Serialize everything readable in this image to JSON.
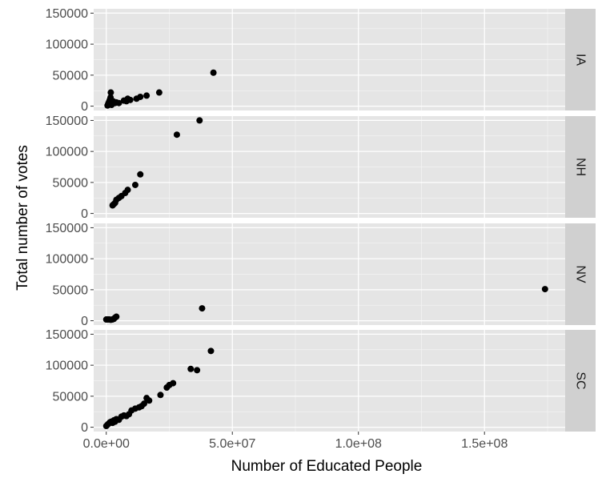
{
  "chart_data": {
    "type": "scatter",
    "xlabel": "Number of Educated People",
    "ylabel": "Total number of votes",
    "xlim": [
      -5000000,
      182000000
    ],
    "ylim": [
      -7000,
      157000
    ],
    "x_ticks": [
      0,
      50000000,
      100000000,
      150000000
    ],
    "x_tick_labels": [
      "0.0e+00",
      "5.0e+07",
      "1.0e+08",
      "1.5e+08"
    ],
    "y_ticks": [
      0,
      50000,
      100000,
      150000
    ],
    "y_tick_labels": [
      "0",
      "50000",
      "100000",
      "150000"
    ],
    "grid": true,
    "facets": [
      {
        "label": "IA",
        "points": [
          [
            500000,
            1000
          ],
          [
            700000,
            3000
          ],
          [
            900000,
            5000
          ],
          [
            1100000,
            7000
          ],
          [
            1300000,
            9000
          ],
          [
            1500000,
            11000
          ],
          [
            1700000,
            14000
          ],
          [
            1800000,
            22000
          ],
          [
            1900000,
            3000
          ],
          [
            2100000,
            2000
          ],
          [
            2300000,
            5000
          ],
          [
            2600000,
            8000
          ],
          [
            3000000,
            7000
          ],
          [
            3500000,
            5000
          ],
          [
            4000000,
            6000
          ],
          [
            5000000,
            5000
          ],
          [
            7000000,
            9000
          ],
          [
            8000000,
            8000
          ],
          [
            8500000,
            12000
          ],
          [
            9500000,
            10000
          ],
          [
            12000000,
            12000
          ],
          [
            13500000,
            15000
          ],
          [
            16000000,
            17000
          ],
          [
            21000000,
            22000
          ],
          [
            42500000,
            54000
          ]
        ]
      },
      {
        "label": "NH",
        "points": [
          [
            2500000,
            13000
          ],
          [
            3000000,
            15000
          ],
          [
            3500000,
            17000
          ],
          [
            4000000,
            22000
          ],
          [
            5000000,
            25000
          ],
          [
            6000000,
            28000
          ],
          [
            7500000,
            33000
          ],
          [
            8500000,
            38000
          ],
          [
            11500000,
            46000
          ],
          [
            13500000,
            63000
          ],
          [
            28000000,
            127000
          ],
          [
            37000000,
            150000
          ]
        ]
      },
      {
        "label": "NV",
        "points": [
          [
            0,
            2000
          ],
          [
            600000,
            2000
          ],
          [
            1200000,
            2000
          ],
          [
            1800000,
            1500
          ],
          [
            2400000,
            2000
          ],
          [
            3000000,
            3000
          ],
          [
            3500000,
            5000
          ],
          [
            4000000,
            6500
          ],
          [
            38000000,
            20000
          ],
          [
            174000000,
            51000
          ]
        ]
      },
      {
        "label": "SC",
        "points": [
          [
            0,
            2000
          ],
          [
            500000,
            4000
          ],
          [
            1000000,
            6000
          ],
          [
            1500000,
            8000
          ],
          [
            2000000,
            9000
          ],
          [
            2500000,
            7000
          ],
          [
            3000000,
            11000
          ],
          [
            3500000,
            9000
          ],
          [
            4000000,
            13000
          ],
          [
            5000000,
            12000
          ],
          [
            6000000,
            17000
          ],
          [
            7000000,
            19000
          ],
          [
            8000000,
            18000
          ],
          [
            9000000,
            21000
          ],
          [
            10000000,
            27000
          ],
          [
            11500000,
            30000
          ],
          [
            13000000,
            32000
          ],
          [
            14000000,
            34000
          ],
          [
            15000000,
            38000
          ],
          [
            16000000,
            47000
          ],
          [
            17000000,
            43000
          ],
          [
            21500000,
            52000
          ],
          [
            24000000,
            64000
          ],
          [
            25000000,
            68000
          ],
          [
            26500000,
            71000
          ],
          [
            33500000,
            94000
          ],
          [
            36000000,
            92000
          ],
          [
            41500000,
            123000
          ]
        ]
      }
    ]
  }
}
